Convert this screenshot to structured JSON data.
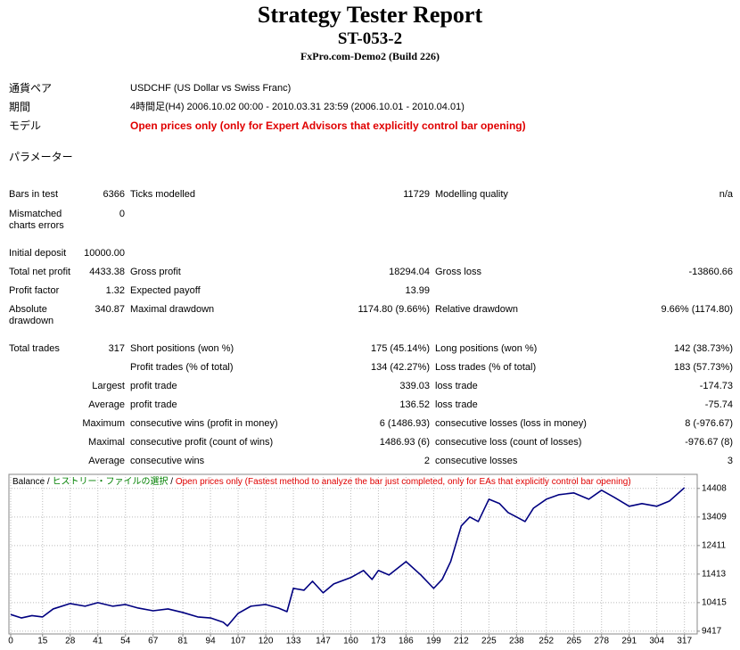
{
  "report": {
    "header": {
      "title": "Strategy Tester Report",
      "subtitle": "ST-053-2",
      "server": "FxPro.com-Demo2 (Build 226)"
    },
    "info": [
      [
        "通貨ペア",
        "USDCHF (US Dollar vs Swiss Franc)"
      ],
      [
        "期間",
        "4時間足(H4) 2006.10.02 00:00 - 2010.03.31 23:59 (2006.10.01 - 2010.04.01)"
      ],
      [
        "モデル",
        "Open prices only (only for Expert Advisors that explicitly control bar opening)"
      ],
      [
        "パラメーター"
      ]
    ],
    "stats": [
      [
        "Bars in test",
        "6366",
        "Ticks modelled",
        "11729",
        "Modelling quality",
        "n/a"
      ],
      [
        "Mismatched charts errors",
        "0",
        null,
        null,
        null,
        null
      ],
      [
        "Initial deposit",
        "10000.00",
        null,
        null,
        null,
        null
      ],
      [
        "Total net profit",
        "4433.38",
        "Gross profit",
        "18294.04",
        "Gross loss",
        "-13860.66"
      ],
      [
        "Profit factor",
        "1.32",
        "Expected payoff",
        "13.99",
        null,
        null
      ],
      [
        "Absolute drawdown",
        "340.87",
        "Maximal drawdown",
        "1174.80 (9.66%)",
        "Relative drawdown",
        "9.66% (1174.80)"
      ],
      [
        "Total trades",
        "317",
        "Short positions (won %)",
        "175 (45.14%)",
        "Long positions (won %)",
        "142 (38.73%)"
      ],
      [
        null,
        null,
        "Profit trades (% of total)",
        "134 (42.27%)",
        "Loss trades (% of total)",
        "183 (57.73%)"
      ],
      [
        null,
        "Largest",
        "profit trade",
        "339.03",
        "loss trade",
        "-174.73"
      ],
      [
        null,
        "Average",
        "profit trade",
        "136.52",
        "loss trade",
        "-75.74"
      ],
      [
        null,
        "Maximum",
        "consecutive wins (profit in money)",
        "6 (1486.93)",
        "consecutive losses (loss in money)",
        "8 (-976.67)"
      ],
      [
        null,
        "Maximal",
        "consecutive profit (count of wins)",
        "1486.93 (6)",
        "consecutive loss (count of losses)",
        "-976.67 (8)"
      ],
      [
        null,
        "Average",
        "consecutive wins",
        "2",
        "consecutive losses",
        "3"
      ]
    ]
  },
  "chart_data": {
    "type": "line",
    "legend": {
      "balance": "Balance",
      "separator": "/",
      "history": "ヒストリー・ファイルの選択",
      "model": "Open prices only (Fastest method to analyze the bar just completed, only for EAs that explicitly control bar opening)"
    },
    "series": [
      {
        "name": "Balance",
        "color": "#000080",
        "x": [
          0,
          5,
          10,
          15,
          20,
          28,
          35,
          41,
          48,
          54,
          60,
          67,
          74,
          81,
          88,
          94,
          100,
          102,
          107,
          113,
          120,
          126,
          130,
          133,
          138,
          142,
          147,
          152,
          160,
          166,
          170,
          173,
          178,
          186,
          193,
          199,
          203,
          207,
          212,
          216,
          220,
          225,
          230,
          234,
          238,
          242,
          246,
          252,
          258,
          265,
          272,
          278,
          284,
          291,
          297,
          304,
          310,
          317
        ],
        "values": [
          10000,
          9880,
          9960,
          9915,
          10195,
          10383,
          10290,
          10414,
          10290,
          10350,
          10225,
          10130,
          10195,
          10070,
          9915,
          9880,
          9730,
          9600,
          10040,
          10290,
          10350,
          10225,
          10100,
          10914,
          10850,
          11163,
          10758,
          11070,
          11290,
          11540,
          11226,
          11540,
          11380,
          11850,
          11380,
          10914,
          11226,
          11850,
          13098,
          13410,
          13250,
          14030,
          13878,
          13566,
          13410,
          13250,
          13720,
          14030,
          14190,
          14250,
          14030,
          14345,
          14095,
          13784,
          13878,
          13784,
          13970,
          14433.38
        ]
      }
    ],
    "xlim": [
      0,
      323
    ],
    "ylim": [
      9320,
      14900
    ],
    "xticks": [
      0,
      15,
      28,
      41,
      54,
      67,
      81,
      94,
      107,
      120,
      133,
      147,
      160,
      173,
      186,
      199,
      212,
      225,
      238,
      252,
      265,
      278,
      291,
      304,
      317
    ],
    "yticks": [
      9417,
      10415,
      11413,
      12411,
      13409,
      14408
    ],
    "grid": true
  }
}
